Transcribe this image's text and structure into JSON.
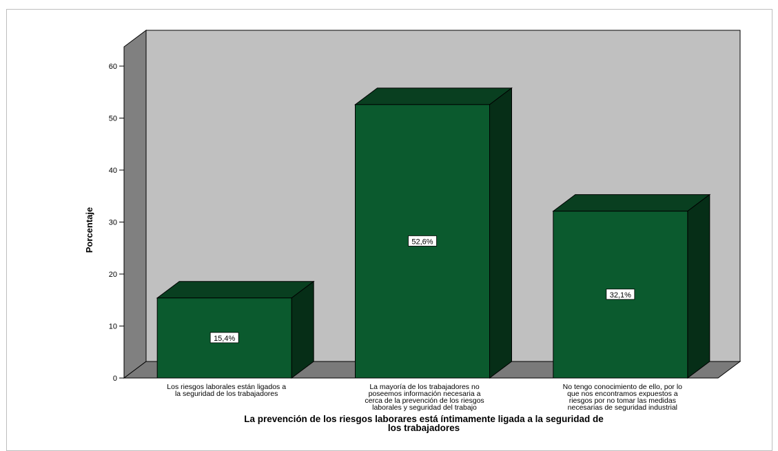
{
  "chart_data": {
    "type": "bar",
    "title": "",
    "xlabel": "La prevención de los riesgos laborares está íntimamente ligada a la seguridad de los trabajadores",
    "xlabel_lines": [
      "La prevención de los riesgos laborares está íntimamente ligada a la seguridad de",
      "los trabajadores"
    ],
    "ylabel": "Porcentaje",
    "ylim": [
      0,
      60
    ],
    "yticks": [
      0,
      10,
      20,
      30,
      40,
      50,
      60
    ],
    "grid": false,
    "three_d": true,
    "categories": [
      [
        "Los riesgos laborales están ligados a",
        "la seguridad de los trabajadores"
      ],
      [
        "La mayoría de los trabajadores no",
        "poseemos información necesaria a",
        "cerca de la prevención de los riesgos",
        "laborales y seguridad del trabajo"
      ],
      [
        "No tengo conocimiento de ello, por lo",
        "que nos encontramos expuestos a",
        "riesgos por no tomar las medidas",
        "necesarias de seguridad industrial"
      ]
    ],
    "values": [
      15.4,
      52.6,
      32.1
    ],
    "data_labels": [
      "15,4%",
      "52,6%",
      "32,1%"
    ],
    "colors": {
      "bar_front": "#0b5a2e",
      "bar_top": "#093f20",
      "bar_side": "#062e17",
      "back_wall": "#c0c0c0",
      "left_wall": "#808080",
      "floor": "#7a7a7a"
    }
  }
}
